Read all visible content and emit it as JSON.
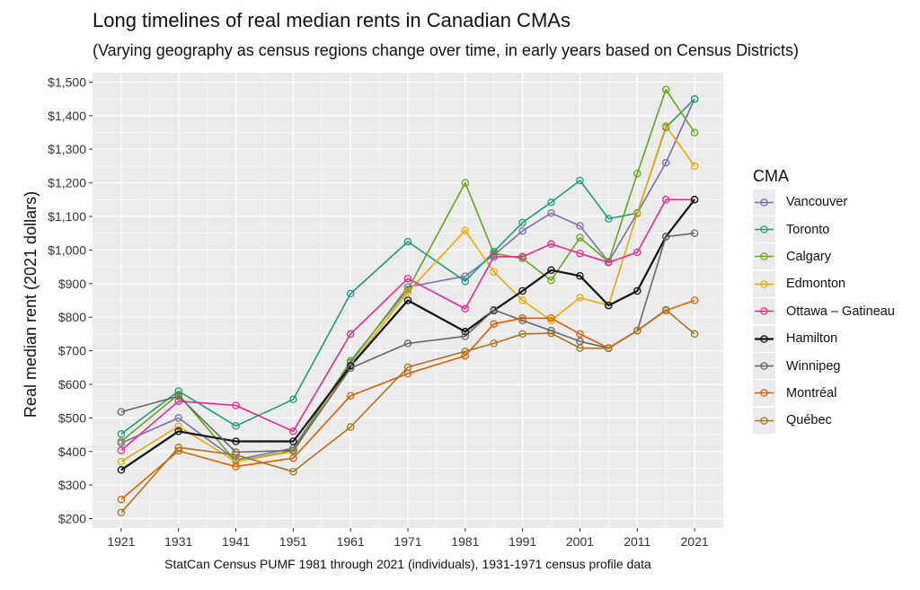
{
  "chart_data": {
    "type": "line",
    "title": "Long timelines of real median rents in Canadian CMAs",
    "subtitle": "(Varying geography as census regions change over time, in early years based on Census Districts)",
    "xlabel": "StatCan Census PUMF 1981 through 2021 (individuals), 1931-1971 census profile data",
    "ylabel": "Real median rent (2021 dollars)",
    "xlim": [
      1916,
      2026
    ],
    "ylim": [
      172,
      1528
    ],
    "x_ticks": [
      1921,
      1931,
      1941,
      1951,
      1961,
      1971,
      1981,
      1991,
      2001,
      2011,
      2021
    ],
    "y_ticks": [
      200,
      300,
      400,
      500,
      600,
      700,
      800,
      900,
      1000,
      1100,
      1200,
      1300,
      1400,
      1500
    ],
    "y_tick_labels": [
      "$200",
      "$300",
      "$400",
      "$500",
      "$600",
      "$700",
      "$800",
      "$900",
      "$1,000",
      "$1,100",
      "$1,200",
      "$1,300",
      "$1,400",
      "$1,500"
    ],
    "x_tick_labels": [
      "1921",
      "1931",
      "1941",
      "1951",
      "1961",
      "1971",
      "1981",
      "1991",
      "2001",
      "2011",
      "2021"
    ],
    "grid": true,
    "legend_title": "CMA",
    "legend_position": "right",
    "series": [
      {
        "name": "Vancouver",
        "color": "#7570b3",
        "points": [
          [
            1921,
            425
          ],
          [
            1931,
            500
          ],
          [
            1941,
            375
          ],
          [
            1951,
            410
          ],
          [
            1961,
            665
          ],
          [
            1971,
            890
          ],
          [
            1981,
            922
          ],
          [
            1986,
            985
          ],
          [
            1991,
            1057
          ],
          [
            1996,
            1110
          ],
          [
            2001,
            1072
          ],
          [
            2006,
            965
          ],
          [
            2011,
            1110
          ],
          [
            2016,
            1260
          ],
          [
            2021,
            1450
          ]
        ]
      },
      {
        "name": "Toronto",
        "color": "#1b9e77",
        "points": [
          [
            1921,
            452
          ],
          [
            1931,
            580
          ],
          [
            1941,
            476
          ],
          [
            1951,
            555
          ],
          [
            1961,
            870
          ],
          [
            1971,
            1025
          ],
          [
            1981,
            907
          ],
          [
            1986,
            995
          ],
          [
            1991,
            1082
          ],
          [
            1996,
            1142
          ],
          [
            2001,
            1207
          ],
          [
            2006,
            1093
          ],
          [
            2011,
            1110
          ],
          [
            2016,
            1365
          ],
          [
            2021,
            1450
          ]
        ]
      },
      {
        "name": "Calgary",
        "color": "#66a61e",
        "points": [
          [
            1921,
            430
          ],
          [
            1931,
            570
          ],
          [
            1941,
            370
          ],
          [
            1951,
            403
          ],
          [
            1961,
            670
          ],
          [
            1971,
            883
          ],
          [
            1981,
            1200
          ],
          [
            1986,
            990
          ],
          [
            1991,
            975
          ],
          [
            1996,
            910
          ],
          [
            2001,
            1037
          ],
          [
            2006,
            965
          ],
          [
            2011,
            1228
          ],
          [
            2016,
            1478
          ],
          [
            2021,
            1350
          ]
        ]
      },
      {
        "name": "Edmonton",
        "color": "#e6ab02",
        "points": [
          [
            1921,
            370
          ],
          [
            1931,
            475
          ],
          [
            1941,
            370
          ],
          [
            1951,
            400
          ],
          [
            1961,
            655
          ],
          [
            1971,
            875
          ],
          [
            1981,
            1058
          ],
          [
            1986,
            935
          ],
          [
            1991,
            850
          ],
          [
            1996,
            790
          ],
          [
            2001,
            858
          ],
          [
            2006,
            835
          ],
          [
            2011,
            1108
          ],
          [
            2016,
            1370
          ],
          [
            2021,
            1250
          ]
        ]
      },
      {
        "name": "Ottawa – Gatineau",
        "color": "#e7298a",
        "points": [
          [
            1921,
            403
          ],
          [
            1931,
            550
          ],
          [
            1941,
            537
          ],
          [
            1951,
            460
          ],
          [
            1961,
            750
          ],
          [
            1971,
            915
          ],
          [
            1981,
            825
          ],
          [
            1986,
            980
          ],
          [
            1991,
            980
          ],
          [
            1996,
            1018
          ],
          [
            2001,
            990
          ],
          [
            2006,
            963
          ],
          [
            2011,
            993
          ],
          [
            2016,
            1150
          ],
          [
            2021,
            1150
          ]
        ]
      },
      {
        "name": "Hamilton",
        "color": "#111111",
        "points": [
          [
            1921,
            345
          ],
          [
            1931,
            460
          ],
          [
            1941,
            430
          ],
          [
            1951,
            430
          ],
          [
            1961,
            655
          ],
          [
            1971,
            850
          ],
          [
            1981,
            757
          ],
          [
            1986,
            820
          ],
          [
            1991,
            878
          ],
          [
            1996,
            940
          ],
          [
            2001,
            923
          ],
          [
            2006,
            835
          ],
          [
            2011,
            878
          ],
          [
            2016,
            1040
          ],
          [
            2021,
            1150
          ]
        ]
      },
      {
        "name": "Winnipeg",
        "color": "#666666",
        "points": [
          [
            1921,
            518
          ],
          [
            1931,
            565
          ],
          [
            1941,
            398
          ],
          [
            1951,
            403
          ],
          [
            1961,
            648
          ],
          [
            1971,
            722
          ],
          [
            1981,
            743
          ],
          [
            1986,
            822
          ],
          [
            1991,
            790
          ],
          [
            1996,
            760
          ],
          [
            2001,
            728
          ],
          [
            2006,
            708
          ],
          [
            2011,
            760
          ],
          [
            2016,
            1040
          ],
          [
            2021,
            1050
          ]
        ]
      },
      {
        "name": "Montréal",
        "color": "#d95f02",
        "points": [
          [
            1921,
            257
          ],
          [
            1931,
            402
          ],
          [
            1941,
            355
          ],
          [
            1951,
            380
          ],
          [
            1961,
            566
          ],
          [
            1971,
            632
          ],
          [
            1981,
            685
          ],
          [
            1986,
            780
          ],
          [
            1991,
            797
          ],
          [
            1996,
            797
          ],
          [
            2001,
            750
          ],
          [
            2006,
            708
          ],
          [
            2011,
            760
          ],
          [
            2016,
            820
          ],
          [
            2021,
            850
          ]
        ]
      },
      {
        "name": "Québec",
        "color": "#a6761d",
        "points": [
          [
            1921,
            218
          ],
          [
            1931,
            412
          ],
          [
            1941,
            390
          ],
          [
            1951,
            340
          ],
          [
            1961,
            473
          ],
          [
            1971,
            651
          ],
          [
            1981,
            698
          ],
          [
            1986,
            722
          ],
          [
            1991,
            750
          ],
          [
            1996,
            752
          ],
          [
            2001,
            708
          ],
          [
            2006,
            707
          ],
          [
            2011,
            760
          ],
          [
            2016,
            822
          ],
          [
            2021,
            750
          ]
        ]
      }
    ]
  }
}
